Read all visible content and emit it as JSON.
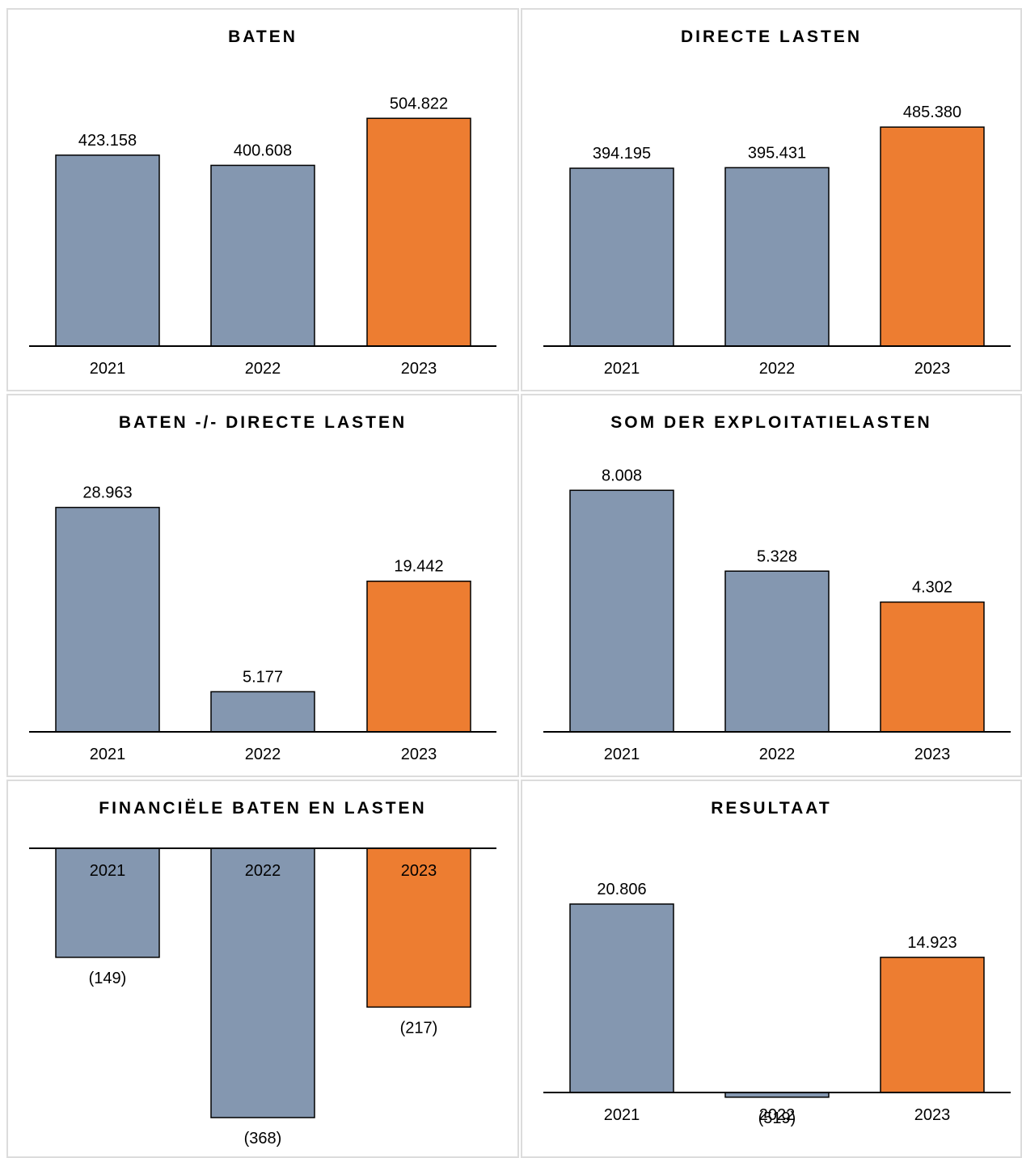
{
  "colors": {
    "previous": "#8497b0",
    "current": "#ed7d31",
    "axis": "#000000"
  },
  "chart_data": [
    {
      "type": "bar",
      "title": "BATEN",
      "categories": [
        "2021",
        "2022",
        "2023"
      ],
      "values": [
        423158,
        400608,
        504822
      ],
      "value_labels": [
        "423.158",
        "400.608",
        "504.822"
      ]
    },
    {
      "type": "bar",
      "title": "DIRECTE LASTEN",
      "categories": [
        "2021",
        "2022",
        "2023"
      ],
      "values": [
        394195,
        395431,
        485380
      ],
      "value_labels": [
        "394.195",
        "395.431",
        "485.380"
      ]
    },
    {
      "type": "bar",
      "title": "BATEN -/- DIRECTE LASTEN",
      "categories": [
        "2021",
        "2022",
        "2023"
      ],
      "values": [
        28963,
        5177,
        19442
      ],
      "value_labels": [
        "28.963",
        "5.177",
        "19.442"
      ]
    },
    {
      "type": "bar",
      "title": "SOM DER EXPLOITATIELASTEN",
      "categories": [
        "2021",
        "2022",
        "2023"
      ],
      "values": [
        8008,
        5328,
        4302
      ],
      "value_labels": [
        "8.008",
        "5.328",
        "4.302"
      ]
    },
    {
      "type": "bar",
      "title": "FINANCIËLE BATEN EN LASTEN",
      "categories": [
        "2021",
        "2022",
        "2023"
      ],
      "values": [
        -149,
        -368,
        -217
      ],
      "value_labels": [
        "(149)",
        "(368)",
        "(217)"
      ]
    },
    {
      "type": "bar",
      "title": "RESULTAAT",
      "categories": [
        "2021",
        "2022",
        "2023"
      ],
      "values": [
        20806,
        -519,
        14923
      ],
      "value_labels": [
        "20.806",
        "(519)",
        "14.923"
      ]
    }
  ]
}
